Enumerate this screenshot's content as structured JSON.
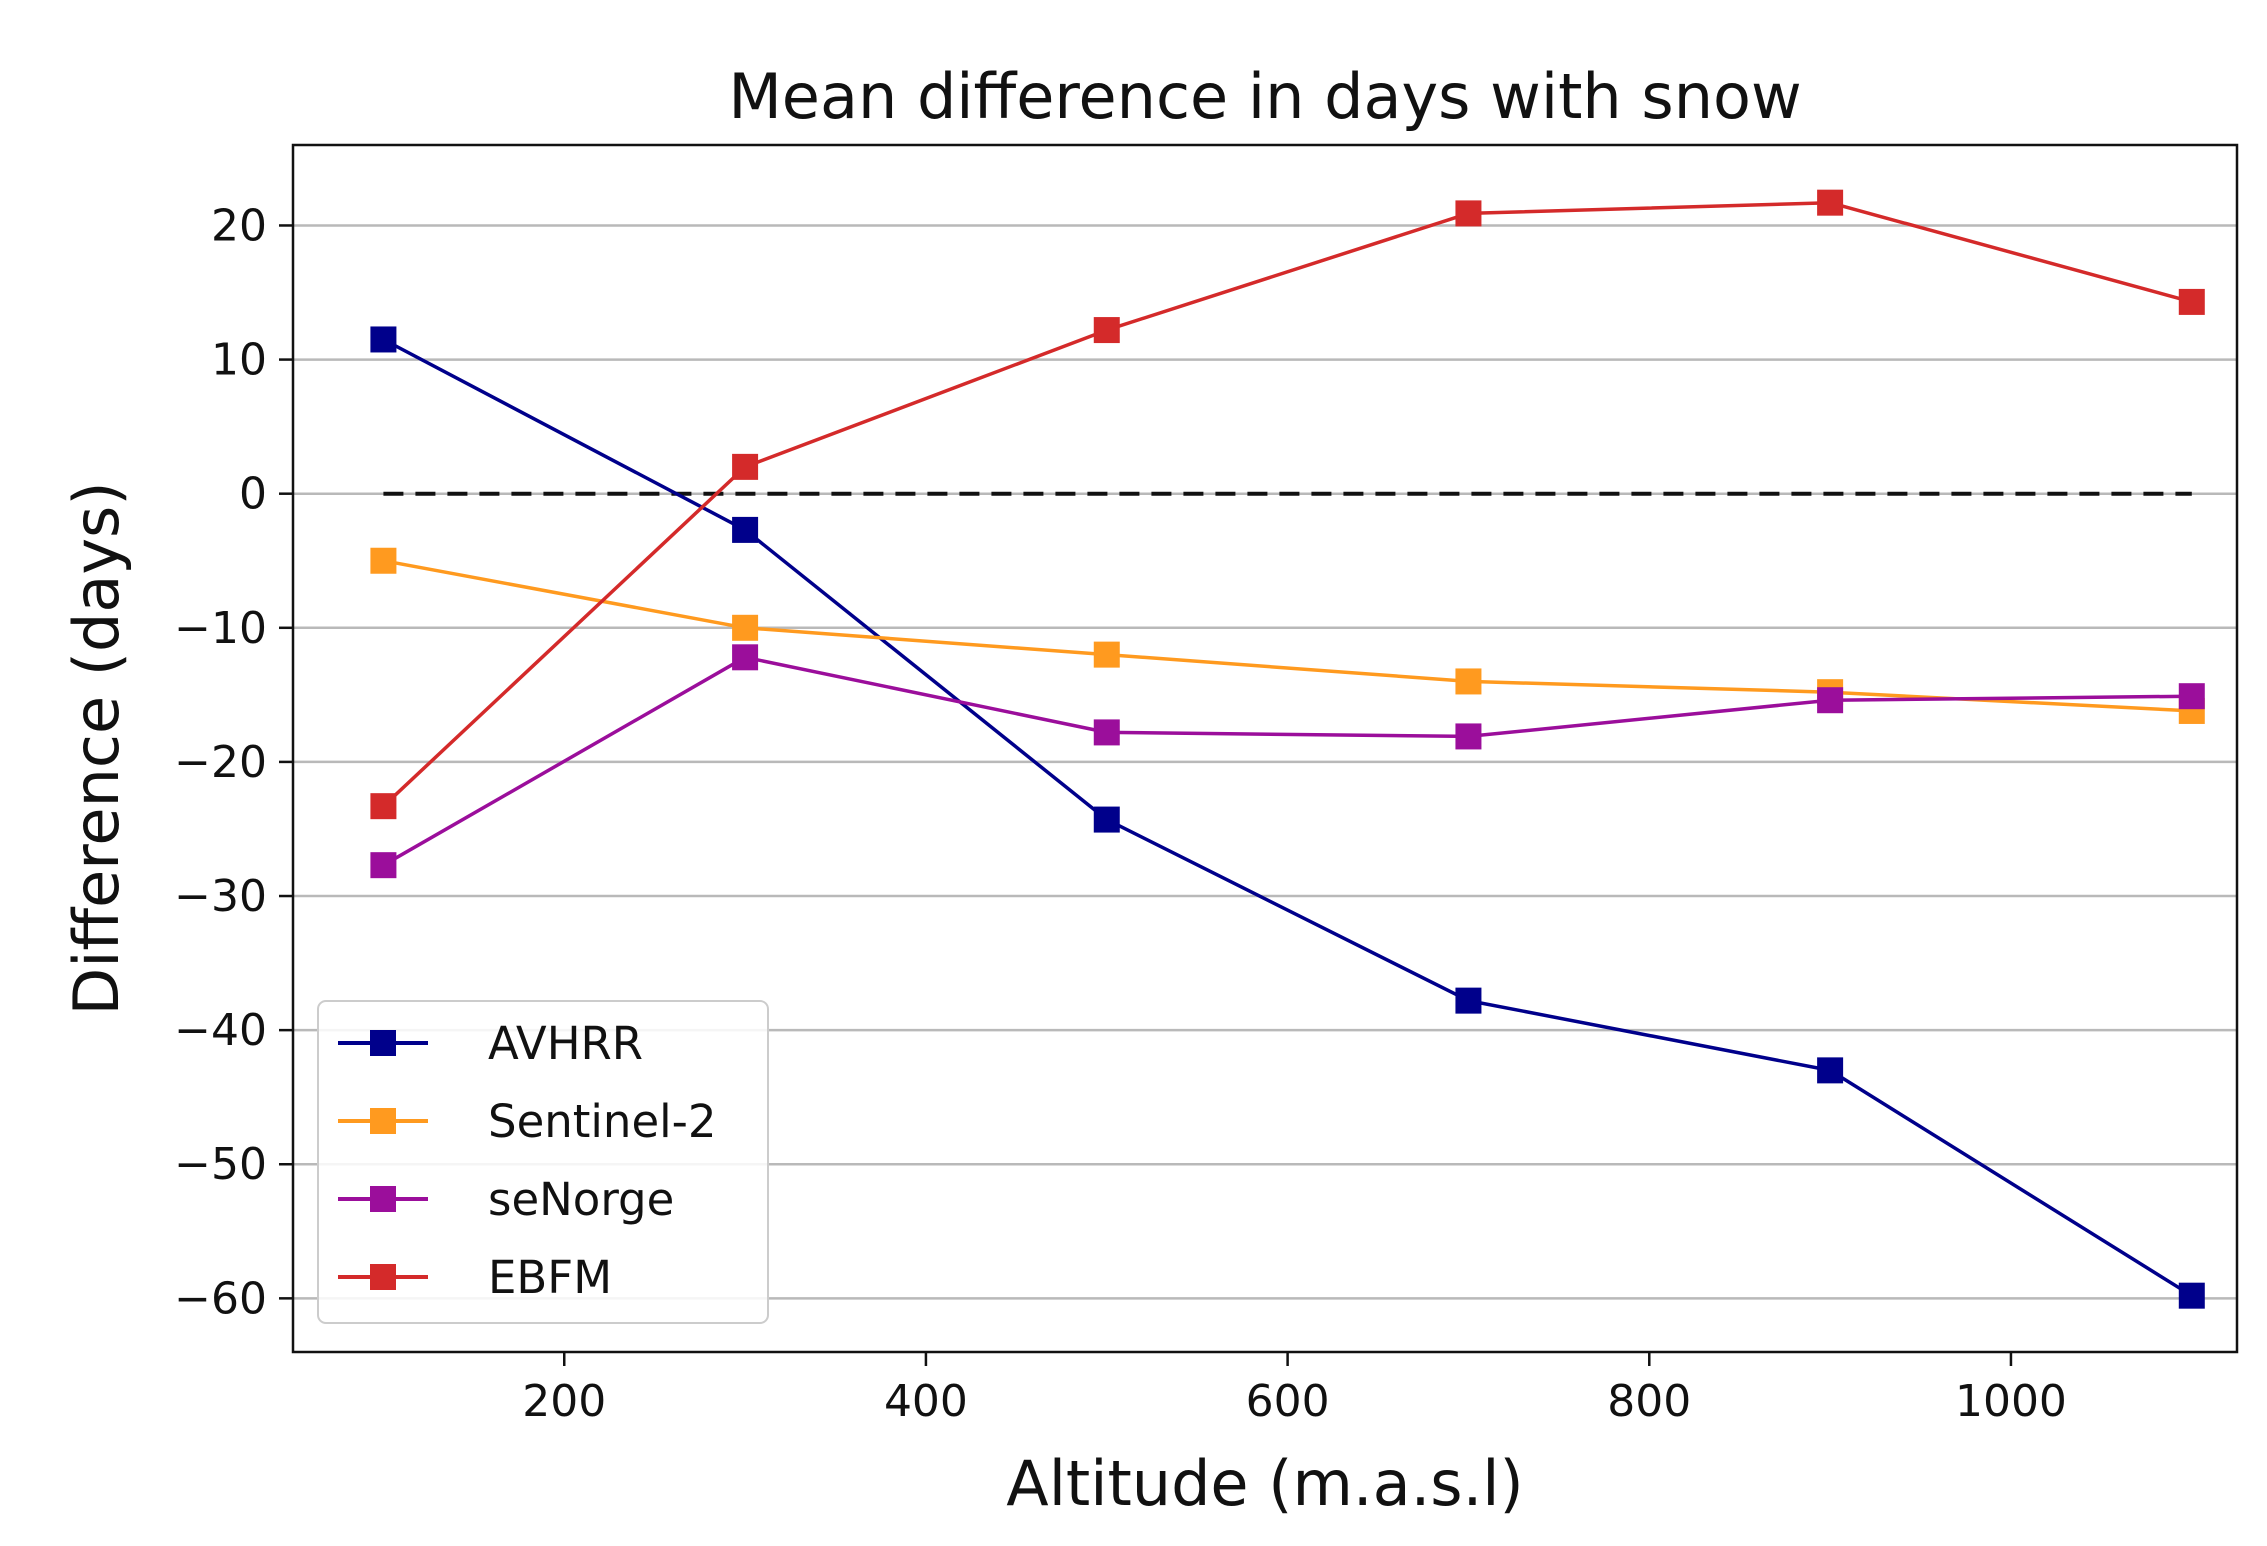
{
  "chart_data": {
    "type": "line",
    "title": "Mean difference in days with snow",
    "xlabel": "Altitude (m.a.s.l)",
    "ylabel": "Difference (days)",
    "xlim": [
      50,
      1125
    ],
    "ylim": [
      -64,
      26
    ],
    "xticks": [
      200,
      400,
      600,
      800,
      1000
    ],
    "xtick_labels": [
      "200",
      "400",
      "600",
      "800",
      "1000"
    ],
    "yticks": [
      20,
      10,
      0,
      -10,
      -20,
      -30,
      -40,
      -50,
      -60
    ],
    "ytick_labels": [
      "20",
      "10",
      "0",
      "−10",
      "−20",
      "−30",
      "−40",
      "−50",
      "−60"
    ],
    "grid": "horizontal",
    "reference_line": {
      "y": 0,
      "x_range": [
        100,
        1100
      ],
      "style": "dashed",
      "color": "#111111"
    },
    "x": [
      100,
      300,
      500,
      700,
      900,
      1100
    ],
    "series": [
      {
        "name": "AVHRR",
        "color": "#00008b",
        "marker": "square",
        "values": [
          11.5,
          -2.7,
          -24.3,
          -37.8,
          -43.0,
          -59.8
        ]
      },
      {
        "name": "Sentinel-2",
        "color": "#ff9a1f",
        "marker": "square",
        "values": [
          -5.0,
          -10.0,
          -12.0,
          -14.0,
          -14.8,
          -16.2
        ]
      },
      {
        "name": "seNorge",
        "color": "#9b0e9b",
        "marker": "square",
        "values": [
          -27.7,
          -12.2,
          -17.8,
          -18.1,
          -15.4,
          -15.1
        ]
      },
      {
        "name": "EBFM",
        "color": "#d42a2a",
        "marker": "square",
        "values": [
          -23.3,
          2.0,
          12.2,
          20.9,
          21.7,
          14.3
        ]
      }
    ],
    "legend_position": "lower-left"
  }
}
